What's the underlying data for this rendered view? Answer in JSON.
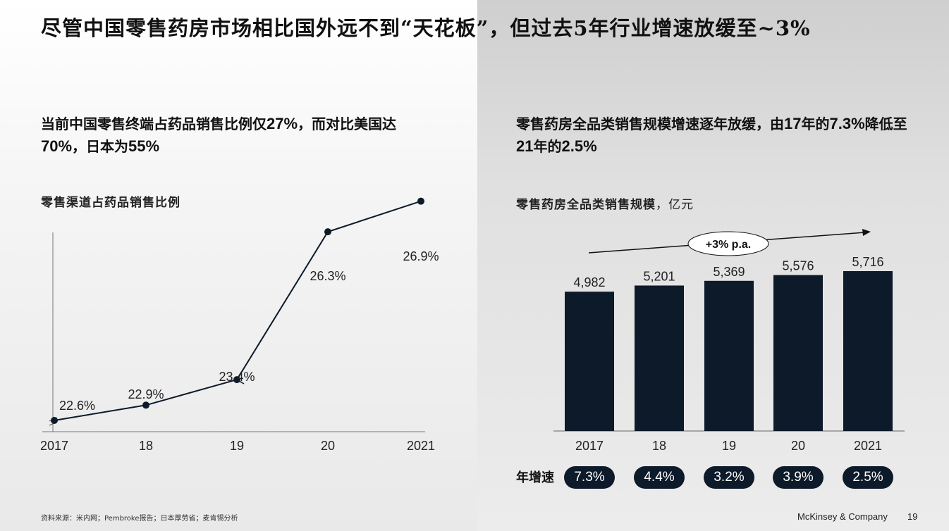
{
  "title": "尽管中国零售药房市场相比国外远不到“天花板”，但过去5年行业增速放缓至~3%",
  "left": {
    "heading_part1": "当前中国零售终端占药品销售比例仅",
    "heading_val1": "27%",
    "heading_part2": "，而对比美国达",
    "heading_val2": "70%",
    "heading_part3": "，日本为",
    "heading_val3": "55%",
    "chart_title": "零售渠道占药品销售比例"
  },
  "right": {
    "heading_part1": "零售药房全品类销售规模增速逐年放缓，由",
    "heading_val1": "17",
    "heading_part2": "年的",
    "heading_val2": "7.3%",
    "heading_part3": "降低至",
    "heading_val3": "21",
    "heading_part4": "年的",
    "heading_val4": "2.5%",
    "chart_title": "零售药房全品类销售规模",
    "chart_unit": "，亿元",
    "cagr_label": "+3% p.a.",
    "growth_label": "年增速"
  },
  "chart_data": [
    {
      "type": "line",
      "title": "零售渠道占药品销售比例",
      "x": [
        "2017",
        "18",
        "19",
        "20",
        "2021"
      ],
      "series": [
        {
          "values": [
            22.6,
            22.9,
            23.4,
            26.3,
            26.9
          ]
        }
      ],
      "data_labels": [
        "22.6%",
        "22.9%",
        "23.4%",
        "26.3%",
        "26.9%"
      ],
      "y_axis_break": true,
      "grid": false,
      "colors": {
        "line": "#0d1a2a"
      }
    },
    {
      "type": "bar",
      "title": "零售药房全品类销售规模",
      "unit": "亿元",
      "categories": [
        "2017",
        "18",
        "19",
        "20",
        "2021"
      ],
      "values": [
        4982,
        5201,
        5369,
        5576,
        5716
      ],
      "data_labels": [
        "4,982",
        "5,201",
        "5,369",
        "5,576",
        "5,716"
      ],
      "growth_rates": [
        "7.3%",
        "4.4%",
        "3.2%",
        "3.9%",
        "2.5%"
      ],
      "annotation": "+3% p.a.",
      "grid": false,
      "colors": {
        "bar": "#0d1a2a"
      }
    }
  ],
  "footer": {
    "source": "资料来源：米内网；Pembroke报告；日本厚劳省；麦肯锡分析",
    "brand": "McKinsey & Company",
    "page": "19"
  }
}
